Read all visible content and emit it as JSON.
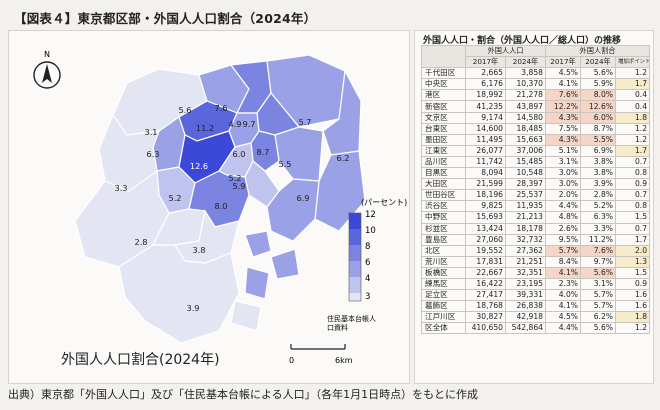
{
  "figure": {
    "title": "【図表４】東京都区部・外国人人口割合（2024年）",
    "source": "出典）東京都「外国人人口」及び「住民基本台帳による人口」（各年1月1日時点）をもとに作成"
  },
  "map": {
    "caption": "外国人人口割合(2024年)",
    "legend_title": "(パーセント)",
    "legend_ticks": [
      "12",
      "10",
      "8",
      "6",
      "4",
      "3"
    ],
    "scale_zero": "0",
    "scale_end": "6km",
    "north_symbol": "N",
    "credit_line1": "住民基本台帳人",
    "credit_line2": "口資料",
    "colors": {
      "c12": "#3b48d8",
      "c10": "#5a66dc",
      "c8": "#7b84e0",
      "c6": "#9aa1e6",
      "c4": "#bfc3ee",
      "c3": "#e4e5f3",
      "water": "#ffffff",
      "border": "#ffffff"
    },
    "ward_values": [
      "3.1",
      "3.3",
      "2.8",
      "3.8",
      "3.9",
      "6.3",
      "12.6",
      "5.2",
      "5.6",
      "7.6",
      "11.2",
      "9.7",
      "8.7",
      "6.0",
      "5.9",
      "5.5",
      "8.0",
      "6.9",
      "5.7",
      "6.2",
      "5.2",
      "4.9"
    ]
  },
  "table": {
    "title": "外国人人口・割合（外国人人口／総人口）の推移",
    "group_headers": [
      "外国人人口",
      "外国人割合"
    ],
    "col_headers": [
      "2017年",
      "2024年",
      "2017年",
      "2024年",
      "増加ポイント"
    ],
    "rows": [
      {
        "ward": "千代田区",
        "p2017": "2,665",
        "p2024": "3,858",
        "r2017": "4.5%",
        "r2024": "5.6%",
        "inc": "1.2"
      },
      {
        "ward": "中央区",
        "p2017": "6,176",
        "p2024": "10,370",
        "r2017": "4.1%",
        "r2024": "5.9%",
        "inc": "1.7"
      },
      {
        "ward": "港区",
        "p2017": "18,992",
        "p2024": "21,278",
        "r2017": "7.6%",
        "r2024": "8.0%",
        "inc": "0.4"
      },
      {
        "ward": "新宿区",
        "p2017": "41,235",
        "p2024": "43,897",
        "r2017": "12.2%",
        "r2024": "12.6%",
        "inc": "0.4"
      },
      {
        "ward": "文京区",
        "p2017": "9,174",
        "p2024": "14,580",
        "r2017": "4.3%",
        "r2024": "6.0%",
        "inc": "1.8"
      },
      {
        "ward": "台東区",
        "p2017": "14,600",
        "p2024": "18,485",
        "r2017": "7.5%",
        "r2024": "8.7%",
        "inc": "1.2"
      },
      {
        "ward": "墨田区",
        "p2017": "11,495",
        "p2024": "15,663",
        "r2017": "4.3%",
        "r2024": "5.5%",
        "inc": "1.2"
      },
      {
        "ward": "江東区",
        "p2017": "26,077",
        "p2024": "37,006",
        "r2017": "5.1%",
        "r2024": "6.9%",
        "inc": "1.7"
      },
      {
        "ward": "品川区",
        "p2017": "11,742",
        "p2024": "15,485",
        "r2017": "3.1%",
        "r2024": "3.8%",
        "inc": "0.7"
      },
      {
        "ward": "目黒区",
        "p2017": "8,094",
        "p2024": "10,548",
        "r2017": "3.0%",
        "r2024": "3.8%",
        "inc": "0.8"
      },
      {
        "ward": "大田区",
        "p2017": "21,599",
        "p2024": "28,397",
        "r2017": "3.0%",
        "r2024": "3.9%",
        "inc": "0.9"
      },
      {
        "ward": "世田谷区",
        "p2017": "18,196",
        "p2024": "25,537",
        "r2017": "2.0%",
        "r2024": "2.8%",
        "inc": "0.7"
      },
      {
        "ward": "渋谷区",
        "p2017": "9,825",
        "p2024": "11,935",
        "r2017": "4.4%",
        "r2024": "5.2%",
        "inc": "0.8"
      },
      {
        "ward": "中野区",
        "p2017": "15,693",
        "p2024": "21,213",
        "r2017": "4.8%",
        "r2024": "6.3%",
        "inc": "1.5"
      },
      {
        "ward": "杉並区",
        "p2017": "13,424",
        "p2024": "18,178",
        "r2017": "2.6%",
        "r2024": "3.3%",
        "inc": "0.7"
      },
      {
        "ward": "豊島区",
        "p2017": "27,060",
        "p2024": "32,732",
        "r2017": "9.5%",
        "r2024": "11.2%",
        "inc": "1.7"
      },
      {
        "ward": "北区",
        "p2017": "19,552",
        "p2024": "27,362",
        "r2017": "5.7%",
        "r2024": "7.6%",
        "inc": "2.0"
      },
      {
        "ward": "荒川区",
        "p2017": "17,831",
        "p2024": "21,251",
        "r2017": "8.4%",
        "r2024": "9.7%",
        "inc": "1.3"
      },
      {
        "ward": "板橋区",
        "p2017": "22,667",
        "p2024": "32,351",
        "r2017": "4.1%",
        "r2024": "5.6%",
        "inc": "1.5"
      },
      {
        "ward": "練馬区",
        "p2017": "16,422",
        "p2024": "23,195",
        "r2017": "2.3%",
        "r2024": "3.1%",
        "inc": "0.9"
      },
      {
        "ward": "足立区",
        "p2017": "27,417",
        "p2024": "39,331",
        "r2017": "4.0%",
        "r2024": "5.7%",
        "inc": "1.6"
      },
      {
        "ward": "葛飾区",
        "p2017": "18,768",
        "p2024": "26,838",
        "r2017": "4.1%",
        "r2024": "5.7%",
        "inc": "1.6"
      },
      {
        "ward": "江戸川区",
        "p2017": "30,827",
        "p2024": "42,918",
        "r2017": "4.5%",
        "r2024": "6.2%",
        "inc": "1.8"
      },
      {
        "ward": "区全体",
        "p2017": "410,650",
        "p2024": "542,864",
        "r2017": "4.4%",
        "r2024": "5.6%",
        "inc": "1.2"
      }
    ],
    "highlight_cells": {
      "hi": [
        "3-r2017",
        "3-r2024",
        "4-r2017",
        "4-r2024",
        "6-r2017",
        "6-r2024",
        "16-r2017",
        "16-r2024",
        "18-r2017",
        "18-r2024",
        "2-r2017",
        "2-r2024"
      ],
      "hi2": [
        "1-inc",
        "4-inc",
        "7-inc",
        "16-inc",
        "17-inc",
        "22-inc"
      ]
    }
  },
  "chart_data": {
    "type": "table",
    "title": "外国人人口・割合（外国人人口／総人口）の推移",
    "columns": [
      "区",
      "外国人人口 2017年",
      "外国人人口 2024年",
      "外国人割合 2017年",
      "外国人割合 2024年",
      "増加ポイント"
    ],
    "map_type": "choropleth",
    "map_title": "外国人人口割合(2024年)",
    "map_unit": "パーセント",
    "map_legend_ticks": [
      12,
      10,
      8,
      6,
      4,
      3
    ]
  }
}
